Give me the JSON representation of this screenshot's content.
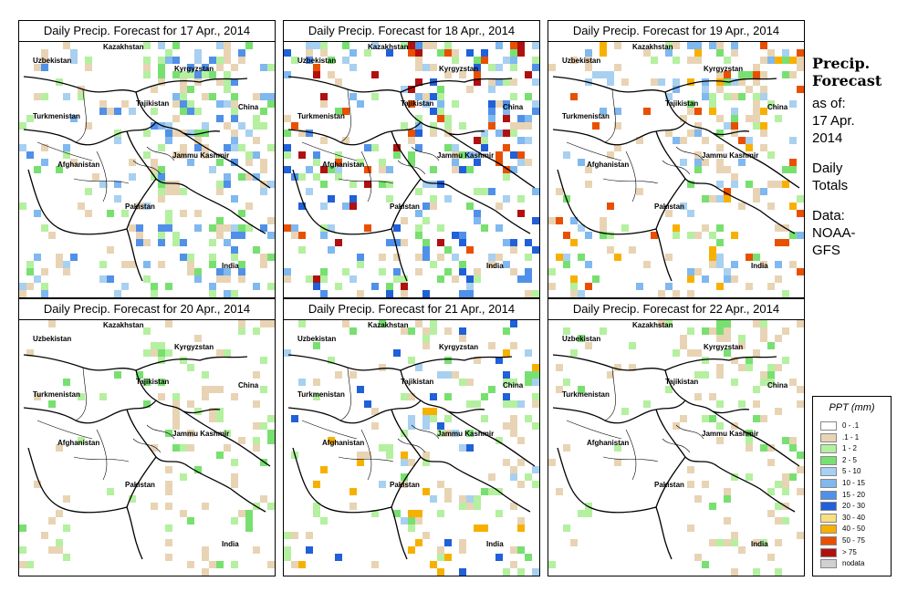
{
  "panels": [
    {
      "title": "Daily Precip. Forecast for  17 Apr., 2014",
      "day": 17
    },
    {
      "title": "Daily Precip. Forecast for  18 Apr., 2014",
      "day": 18
    },
    {
      "title": "Daily Precip. Forecast for  19 Apr., 2014",
      "day": 19
    },
    {
      "title": "Daily Precip. Forecast for  20 Apr., 2014",
      "day": 20
    },
    {
      "title": "Daily Precip. Forecast for  21 Apr., 2014",
      "day": 21
    },
    {
      "title": "Daily Precip. Forecast for  22 Apr., 2014",
      "day": 22
    }
  ],
  "countries": [
    "Kazakhstan",
    "Uzbekistan",
    "Kyrgyzstan",
    "Tajikistan",
    "Turkmenistan",
    "China",
    "Afghanistan",
    "Jammu Kashmir",
    "Pakistan",
    "India"
  ],
  "sidebar": {
    "heading_line1": "Precip.",
    "heading_line2": "Forecast",
    "asof_line1": "as of:",
    "asof_line2": "17 Apr.",
    "asof_line3": "2014",
    "totals_line1": "Daily",
    "totals_line2": "Totals",
    "data_line1": "Data:",
    "data_line2": "NOAA-",
    "data_line3": "GFS"
  },
  "legend": {
    "title": "PPT (mm)",
    "items": [
      {
        "label": "0 - .1",
        "color": "#ffffff"
      },
      {
        "label": ".1 - 1",
        "color": "#e8d4b4"
      },
      {
        "label": "1 - 2",
        "color": "#b4f0a0"
      },
      {
        "label": "2 - 5",
        "color": "#78e070"
      },
      {
        "label": "5 - 10",
        "color": "#a8d0f0"
      },
      {
        "label": "10 - 15",
        "color": "#80b8f0"
      },
      {
        "label": "15 - 20",
        "color": "#5090e8"
      },
      {
        "label": "20 - 30",
        "color": "#2060d8"
      },
      {
        "label": "30 - 40",
        "color": "#f8e080"
      },
      {
        "label": "40 - 50",
        "color": "#f8b000"
      },
      {
        "label": "50 - 75",
        "color": "#e85000"
      },
      {
        "label": "> 75",
        "color": "#b01010"
      },
      {
        "label": "nodata",
        "color": "#d0d0d0"
      }
    ]
  }
}
